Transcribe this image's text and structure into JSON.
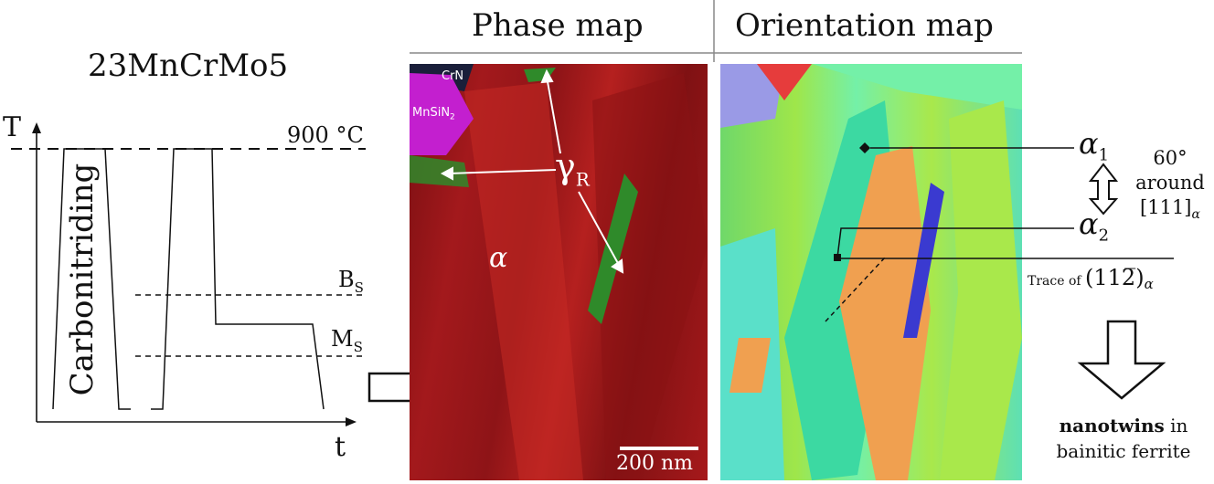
{
  "headers": {
    "phase_map": "Phase map",
    "orientation_map": "Orientation map"
  },
  "schematic": {
    "steel_grade": "23MnCrMo5",
    "t_axis_label": "T",
    "time_axis_label": "t",
    "temperature_label": "900 °C",
    "bs_label": "B",
    "bs_sub": "S",
    "ms_label": "M",
    "ms_sub": "S",
    "process_label": "Carbonitriding"
  },
  "phase_map": {
    "crn_label": "CrN",
    "mnsin_label": "MnSiN",
    "mnsin_sub": "2",
    "gamma_label": "γ",
    "gamma_sub": "R",
    "alpha_label": "α",
    "scale_bar_label": "200 nm"
  },
  "orientation_map": {
    "alpha1_label": "α",
    "alpha1_sub": "1",
    "alpha2_label": "α",
    "alpha2_sub": "2",
    "rotation_line1": "60°",
    "rotation_line2": "around",
    "rotation_line3": "[111]",
    "rotation_sub": "α",
    "trace_prefix": "Trace of ",
    "trace_index": "(112̅)",
    "trace_sub": "α"
  },
  "conclusion": {
    "bold_word": "nanotwins",
    "line1_rest": " in",
    "line2": "bainitic ferrite"
  },
  "colors": {
    "ferrite_red": "#a3191c",
    "austenite_green": "#2f8a2a",
    "mnsin2_magenta": "#c31fcf",
    "crn_dark": "#1a1f3a"
  }
}
